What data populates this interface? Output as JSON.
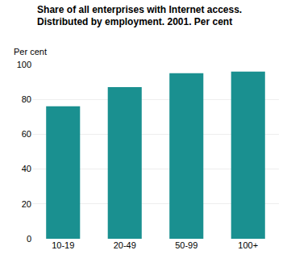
{
  "chart_data": {
    "type": "bar",
    "title": "Share of all enterprises with Internet access. Distributed by employment. 2001. Per cent",
    "ylabel": "Per cent",
    "categories": [
      "10-19",
      "20-49",
      "50-99",
      "100+"
    ],
    "values": [
      76,
      87,
      95,
      96
    ],
    "color": "#1a9090",
    "ylim": [
      0,
      100
    ],
    "yticks": [
      0,
      20,
      40,
      60,
      80,
      100
    ],
    "grid": true
  }
}
